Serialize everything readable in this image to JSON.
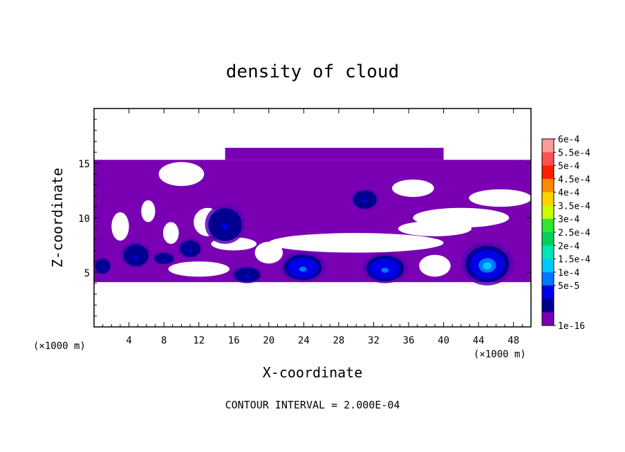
{
  "chart_data": {
    "type": "heatmap",
    "title": "density of cloud",
    "xlabel": "X-coordinate",
    "ylabel": "Z-coordinate",
    "x_unit": "(×1000 m)",
    "z_unit": "(×1000 m)",
    "xlim": [
      0,
      50
    ],
    "ylim": [
      0,
      20
    ],
    "x_ticks": [
      4,
      8,
      12,
      16,
      20,
      24,
      28,
      32,
      36,
      40,
      44,
      48
    ],
    "y_ticks": [
      5,
      10,
      15
    ],
    "contour_interval": "CONTOUR INTERVAL = 2.000E-04",
    "colorbar": {
      "labels": [
        "6e-4",
        "5.5e-4",
        "5e-4",
        "4.5e-4",
        "4e-4",
        "3.5e-4",
        "3e-4",
        "2.5e-4",
        "2e-4",
        "1.5e-4",
        "1e-4",
        "5e-5",
        "1e-16"
      ],
      "colors": [
        "#ff9a9a",
        "#ff5050",
        "#ff2000",
        "#ff8c00",
        "#ffd200",
        "#c8ff00",
        "#32e632",
        "#00d25a",
        "#00e6b4",
        "#00c8ff",
        "#0078ff",
        "#0000e6",
        "#000090",
        "#7a00b4"
      ]
    },
    "cloud_band": {
      "z_bottom": 4.1,
      "z_top": 15.3,
      "background_color": "#7a00b4"
    },
    "clear_regions": [
      {
        "x": 10,
        "z": 14.0,
        "rx": 2.6,
        "rz": 1.1
      },
      {
        "x": 3.0,
        "z": 9.2,
        "rx": 1.0,
        "rz": 1.3
      },
      {
        "x": 6.2,
        "z": 10.6,
        "rx": 0.8,
        "rz": 1.0
      },
      {
        "x": 8.8,
        "z": 8.6,
        "rx": 0.9,
        "rz": 1.0
      },
      {
        "x": 13.0,
        "z": 9.6,
        "rx": 1.6,
        "rz": 1.3
      },
      {
        "x": 16.0,
        "z": 7.6,
        "rx": 2.6,
        "rz": 0.6
      },
      {
        "x": 20.0,
        "z": 6.8,
        "rx": 1.6,
        "rz": 1.0
      },
      {
        "x": 30.0,
        "z": 7.7,
        "rx": 10.0,
        "rz": 0.9
      },
      {
        "x": 39.0,
        "z": 9.0,
        "rx": 4.2,
        "rz": 0.7
      },
      {
        "x": 42.0,
        "z": 10.0,
        "rx": 5.5,
        "rz": 0.9
      },
      {
        "x": 36.5,
        "z": 12.7,
        "rx": 2.4,
        "rz": 0.8
      },
      {
        "x": 46.5,
        "z": 11.8,
        "rx": 3.6,
        "rz": 0.8
      },
      {
        "x": 12.0,
        "z": 5.3,
        "rx": 3.5,
        "rz": 0.7
      },
      {
        "x": 39.0,
        "z": 5.6,
        "rx": 1.8,
        "rz": 1.0
      }
    ],
    "cells": [
      {
        "x": 23.9,
        "z": 5.5,
        "rx": 2.6,
        "rz": 1.4,
        "peak": 0.0001
      },
      {
        "x": 33.3,
        "z": 5.4,
        "rx": 2.6,
        "rz": 1.4,
        "peak": 0.0001
      },
      {
        "x": 45.0,
        "z": 5.8,
        "rx": 3.0,
        "rz": 2.0,
        "peak": 0.00015
      },
      {
        "x": 15.0,
        "z": 9.4,
        "rx": 2.3,
        "rz": 1.8,
        "peak": 5e-05
      },
      {
        "x": 4.8,
        "z": 6.6,
        "rx": 1.7,
        "rz": 1.2,
        "peak": 5e-05
      },
      {
        "x": 17.5,
        "z": 4.8,
        "rx": 1.8,
        "rz": 0.8,
        "peak": 5e-05
      },
      {
        "x": 31.0,
        "z": 11.7,
        "rx": 1.6,
        "rz": 1.0,
        "peak": 5e-05
      },
      {
        "x": 1.0,
        "z": 5.6,
        "rx": 1.0,
        "rz": 0.8,
        "peak": 5e-05
      },
      {
        "x": 8.0,
        "z": 6.3,
        "rx": 1.3,
        "rz": 0.6,
        "peak": 5e-05
      },
      {
        "x": 11.0,
        "z": 7.2,
        "rx": 1.4,
        "rz": 0.9,
        "peak": 5e-05
      }
    ]
  }
}
